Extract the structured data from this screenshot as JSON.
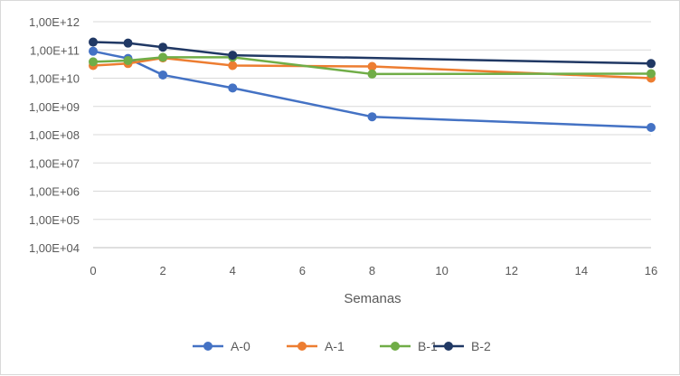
{
  "chart_data": {
    "type": "line",
    "title": "",
    "xlabel": "Semanas",
    "ylabel": "",
    "y_scale": "log",
    "xlim": [
      0,
      16
    ],
    "ylim_exponents": [
      4,
      12
    ],
    "x_ticks": [
      "0",
      "2",
      "4",
      "6",
      "8",
      "10",
      "12",
      "14",
      "16"
    ],
    "y_ticks": [
      "1,00E+04",
      "1,00E+05",
      "1,00E+06",
      "1,00E+07",
      "1,00E+08",
      "1,00E+09",
      "1,00E+10",
      "1,00E+11",
      "1,00E+12"
    ],
    "x": [
      0,
      1,
      2,
      4,
      8,
      16
    ],
    "series": [
      {
        "name": "A-0",
        "color": "#4472C4",
        "values": [
          90000000000.0,
          50000000000.0,
          13000000000.0,
          4500000000.0,
          430000000.0,
          180000000.0
        ]
      },
      {
        "name": "A-1",
        "color": "#ED7D31",
        "values": [
          28000000000.0,
          33000000000.0,
          52000000000.0,
          28000000000.0,
          26000000000.0,
          10000000000.0
        ]
      },
      {
        "name": "B-1",
        "color": "#70AD47",
        "values": [
          38000000000.0,
          42000000000.0,
          55000000000.0,
          55000000000.0,
          14000000000.0,
          14500000000.0
        ]
      },
      {
        "name": "B-2",
        "color": "#203864",
        "values": [
          190000000000.0,
          175000000000.0,
          125000000000.0,
          65000000000.0,
          0,
          33000000000.0
        ]
      }
    ],
    "legend_position": "bottom",
    "grid": true
  }
}
